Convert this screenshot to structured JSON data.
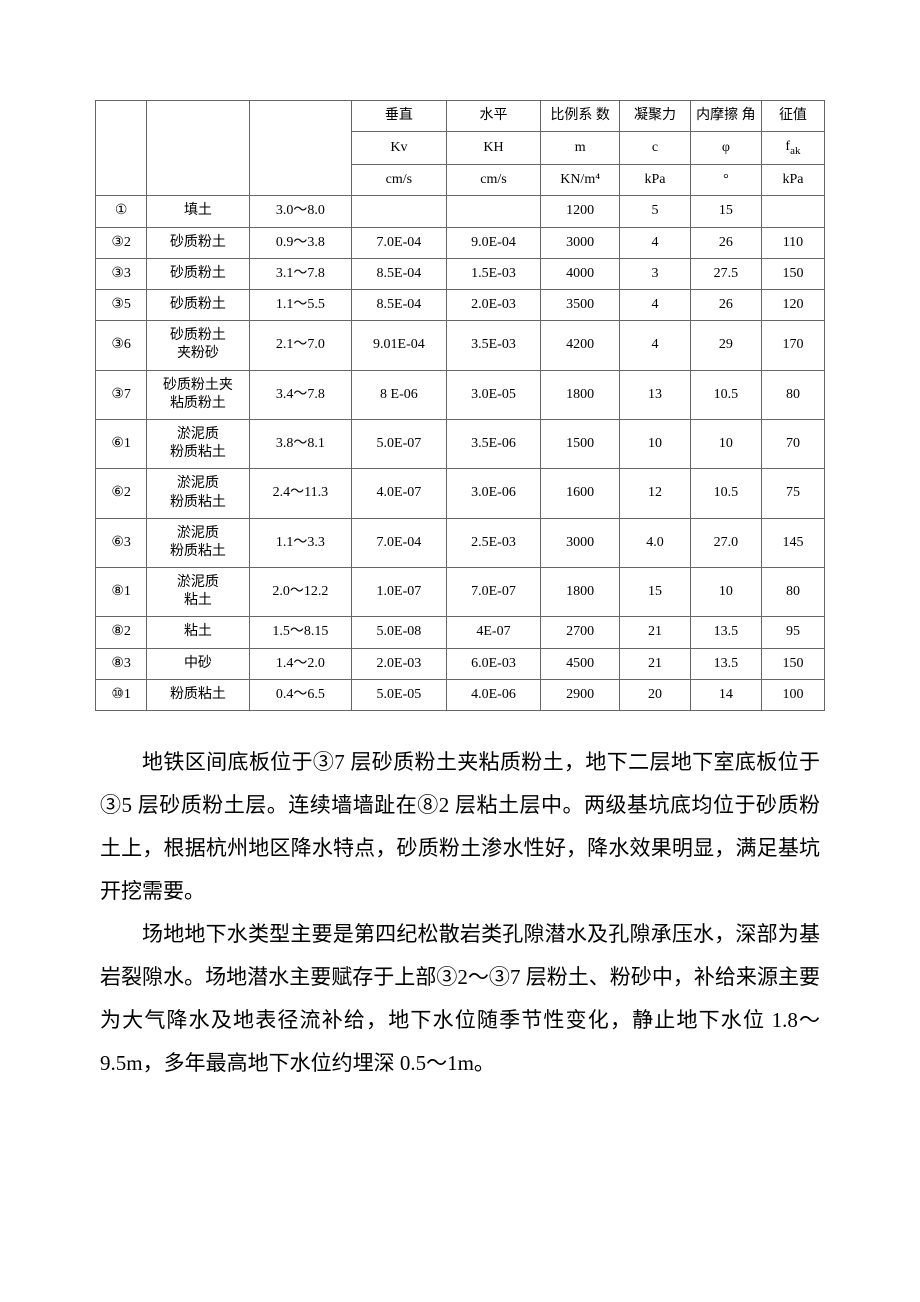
{
  "table": {
    "header": {
      "r1": {
        "vert": "垂直",
        "horiz": "水平",
        "ratio": "比例系\n数",
        "cohesion": "凝聚力",
        "friction": "内摩擦\n角",
        "char": "征值"
      },
      "r2": {
        "kv": "Kv",
        "kh": "KH",
        "m": "m",
        "c": "c",
        "phi": "φ",
        "fak_pre": "f",
        "fak_sub": "ak"
      },
      "r3": {
        "kv": "cm/s",
        "kh": "cm/s",
        "m": "KN/m⁴",
        "c": "kPa",
        "phi": "°",
        "fak": "kPa"
      }
    },
    "rows": [
      {
        "id": "①",
        "name": "填土",
        "thick": "3.0～8.0",
        "kv": "",
        "kh": "",
        "m": "1200",
        "c": "5",
        "phi": "15",
        "fak": ""
      },
      {
        "id": "③2",
        "name": "砂质粉土",
        "thick": "0.9～3.8",
        "kv": "7.0E-04",
        "kh": "9.0E-04",
        "m": "3000",
        "c": "4",
        "phi": "26",
        "fak": "110"
      },
      {
        "id": "③3",
        "name": "砂质粉土",
        "thick": "3.1～7.8",
        "kv": "8.5E-04",
        "kh": "1.5E-03",
        "m": "4000",
        "c": "3",
        "phi": "27.5",
        "fak": "150"
      },
      {
        "id": "③5",
        "name": "砂质粉土",
        "thick": "1.1～5.5",
        "kv": "8.5E-04",
        "kh": "2.0E-03",
        "m": "3500",
        "c": "4",
        "phi": "26",
        "fak": "120"
      },
      {
        "id": "③6",
        "name": "砂质粉土\n夹粉砂",
        "thick": "2.1～7.0",
        "kv": "9.01E-04",
        "kh": "3.5E-03",
        "m": "4200",
        "c": "4",
        "phi": "29",
        "fak": "170"
      },
      {
        "id": "③7",
        "name": "砂质粉土夹\n粘质粉土",
        "thick": "3.4～7.8",
        "kv": "8 E-06",
        "kh": "3.0E-05",
        "m": "1800",
        "c": "13",
        "phi": "10.5",
        "fak": "80"
      },
      {
        "id": "⑥1",
        "name": "淤泥质\n粉质粘土",
        "thick": "3.8～8.1",
        "kv": "5.0E-07",
        "kh": "3.5E-06",
        "m": "1500",
        "c": "10",
        "phi": "10",
        "fak": "70"
      },
      {
        "id": "⑥2",
        "name": "淤泥质\n粉质粘土",
        "thick": "2.4～11.3",
        "kv": "4.0E-07",
        "kh": "3.0E-06",
        "m": "1600",
        "c": "12",
        "phi": "10.5",
        "fak": "75"
      },
      {
        "id": "⑥3",
        "name": "淤泥质\n粉质粘土",
        "thick": "1.1～3.3",
        "kv": "7.0E-04",
        "kh": "2.5E-03",
        "m": "3000",
        "c": "4.0",
        "phi": "27.0",
        "fak": "145"
      },
      {
        "id": "⑧1",
        "name": "淤泥质\n粘土",
        "thick": "2.0～12.2",
        "kv": "1.0E-07",
        "kh": "7.0E-07",
        "m": "1800",
        "c": "15",
        "phi": "10",
        "fak": "80"
      },
      {
        "id": "⑧2",
        "name": "粘土",
        "thick": "1.5～8.15",
        "kv": "5.0E-08",
        "kh": "4E-07",
        "m": "2700",
        "c": "21",
        "phi": "13.5",
        "fak": "95"
      },
      {
        "id": "⑧3",
        "name": "中砂",
        "thick": "1.4～2.0",
        "kv": "2.0E-03",
        "kh": "6.0E-03",
        "m": "4500",
        "c": "21",
        "phi": "13.5",
        "fak": "150"
      },
      {
        "id": "⑩1",
        "name": "粉质粘土",
        "thick": "0.4～6.5",
        "kv": "5.0E-05",
        "kh": "4.0E-06",
        "m": "2900",
        "c": "20",
        "phi": "14",
        "fak": "100"
      }
    ]
  },
  "paragraphs": {
    "p1": "地铁区间底板位于③7 层砂质粉土夹粘质粉土，地下二层地下室底板位于③5 层砂质粉土层。连续墙墙趾在⑧2 层粘土层中。两级基坑底均位于砂质粉土上，根据杭州地区降水特点，砂质粉土渗水性好，降水效果明显，满足基坑开挖需要。",
    "p2": "场地地下水类型主要是第四纪松散岩类孔隙潜水及孔隙承压水，深部为基岩裂隙水。场地潜水主要赋存于上部③2～③7 层粉土、粉砂中，补给来源主要为大气降水及地表径流补给，地下水位随季节性变化，静止地下水位 1.8～9.5m，多年最高地下水位约埋深 0.5～1m。"
  }
}
